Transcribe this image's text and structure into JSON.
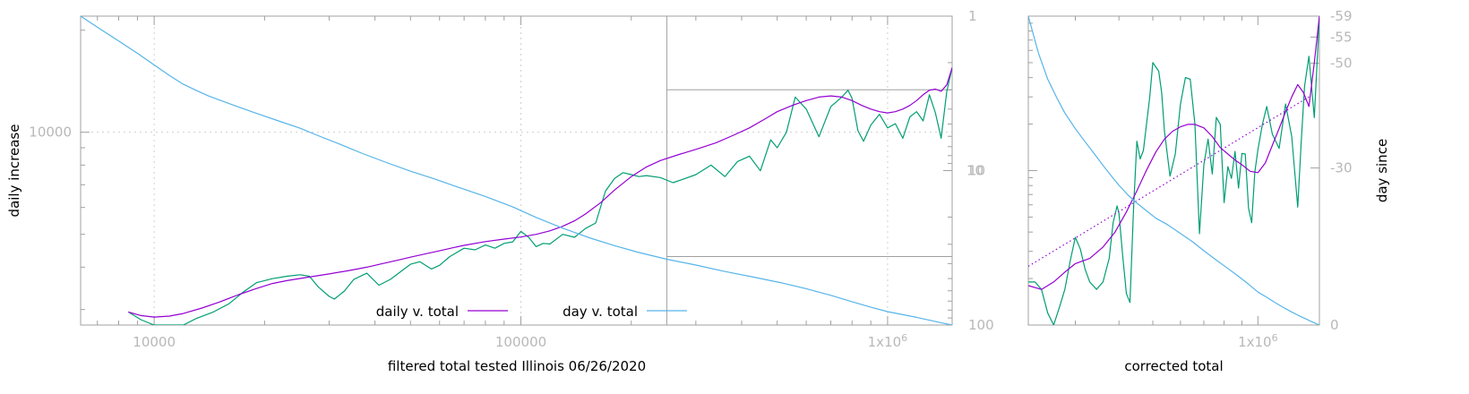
{
  "chart_data": [
    {
      "type": "line",
      "id": "main",
      "xlabel": "filtered total tested Illinois 06/26/2020",
      "ylabel_left": "daily increase",
      "ylabel_right": "",
      "x_scale": "log",
      "xlim": [
        6300,
        1500000
      ],
      "x_ticks": [
        {
          "value": 10000,
          "label": "10000"
        },
        {
          "value": 100000,
          "label": "100000"
        },
        {
          "value": 1000000,
          "label": "1x10",
          "sup": "6"
        }
      ],
      "left_scale": "log",
      "left_lim": [
        2700,
        22000
      ],
      "left_ticks": [
        {
          "value": 10000,
          "label": "10000"
        }
      ],
      "right_scale": "log",
      "right_inverted": true,
      "right_lim": [
        1,
        100
      ],
      "right_ticks": [
        {
          "value": 1,
          "label": "1"
        },
        {
          "value": 10,
          "label": "10"
        },
        {
          "value": 100,
          "label": "100"
        }
      ],
      "grid": true,
      "legend": [
        {
          "label": "daily v. total",
          "color": "#9400d3"
        },
        {
          "label": "day v. total",
          "color": "#56b4e9"
        }
      ],
      "series": [
        {
          "axis": "left",
          "color": "#009e73",
          "x": [
            8500,
            9200,
            10000,
            11000,
            12000,
            13000,
            14500,
            16000,
            17500,
            19000,
            21000,
            23000,
            25000,
            26500,
            28000,
            30000,
            31000,
            33000,
            35000,
            38000,
            41000,
            44000,
            47000,
            50000,
            53000,
            57000,
            60000,
            64000,
            70000,
            75000,
            80000,
            85000,
            90000,
            95000,
            100000,
            105000,
            110000,
            115000,
            120000,
            130000,
            140000,
            150000,
            160000,
            170000,
            180000,
            190000,
            200000,
            210000,
            220000,
            240000,
            260000,
            280000,
            300000,
            330000,
            360000,
            390000,
            420000,
            450000,
            480000,
            500000,
            530000,
            560000,
            600000,
            650000,
            700000,
            750000,
            780000,
            800000,
            830000,
            860000,
            900000,
            950000,
            1000000,
            1050000,
            1100000,
            1150000,
            1200000,
            1250000,
            1300000,
            1350000,
            1400000,
            1450000,
            1500000
          ],
          "values": [
            2950,
            2800,
            2700,
            2700,
            2700,
            2820,
            2950,
            3120,
            3380,
            3600,
            3700,
            3760,
            3800,
            3760,
            3500,
            3280,
            3220,
            3400,
            3680,
            3840,
            3540,
            3680,
            3880,
            4080,
            4150,
            3950,
            4050,
            4300,
            4550,
            4500,
            4650,
            4550,
            4700,
            4750,
            5100,
            4900,
            4600,
            4700,
            4680,
            5000,
            4900,
            5200,
            5400,
            6700,
            7300,
            7600,
            7500,
            7400,
            7450,
            7350,
            7100,
            7300,
            7500,
            8000,
            7400,
            8200,
            8500,
            7700,
            9500,
            9000,
            10000,
            12700,
            11700,
            9700,
            11900,
            12700,
            13300,
            12600,
            10100,
            9400,
            10500,
            11300,
            10300,
            10600,
            9600,
            11100,
            11500,
            10800,
            12900,
            11400,
            9600,
            13200,
            15500
          ]
        },
        {
          "axis": "left",
          "color": "#9400d3",
          "x": [
            8500,
            9200,
            10000,
            11000,
            12000,
            13500,
            15000,
            17000,
            19000,
            21000,
            23000,
            26000,
            30000,
            34000,
            38000,
            42000,
            46000,
            50000,
            55000,
            60000,
            65000,
            70000,
            80000,
            90000,
            100000,
            110000,
            120000,
            130000,
            140000,
            150000,
            165000,
            180000,
            200000,
            220000,
            240000,
            270000,
            300000,
            340000,
            380000,
            420000,
            460000,
            500000,
            550000,
            600000,
            650000,
            700000,
            750000,
            800000,
            850000,
            900000,
            950000,
            1000000,
            1050000,
            1100000,
            1150000,
            1200000,
            1250000,
            1300000,
            1350000,
            1400000,
            1450000,
            1500000
          ],
          "values": [
            2950,
            2880,
            2850,
            2870,
            2920,
            3030,
            3150,
            3320,
            3460,
            3580,
            3650,
            3730,
            3820,
            3910,
            4000,
            4100,
            4190,
            4280,
            4380,
            4470,
            4560,
            4640,
            4760,
            4840,
            4910,
            5000,
            5120,
            5280,
            5480,
            5740,
            6200,
            6750,
            7400,
            7900,
            8250,
            8600,
            8900,
            9300,
            9800,
            10300,
            10900,
            11500,
            12000,
            12400,
            12700,
            12800,
            12700,
            12400,
            12000,
            11700,
            11500,
            11400,
            11500,
            11700,
            12000,
            12400,
            12900,
            13300,
            13400,
            13200,
            13800,
            15500
          ]
        },
        {
          "axis": "right",
          "color": "#56b4e9",
          "x": [
            6300,
            7000,
            8000,
            9000,
            10000,
            11000,
            12000,
            13000,
            14000,
            15000,
            17000,
            19000,
            22000,
            25000,
            28000,
            32000,
            37000,
            43000,
            50000,
            58000,
            68000,
            80000,
            95000,
            110000,
            130000,
            155000,
            180000,
            210000,
            250000,
            300000,
            360000,
            430000,
            510000,
            600000,
            700000,
            800000,
            900000,
            1000000,
            1100000,
            1200000,
            1300000,
            1400000,
            1500000
          ],
          "values": [
            1,
            1.18,
            1.45,
            1.74,
            2.07,
            2.42,
            2.76,
            3.02,
            3.27,
            3.48,
            3.88,
            4.26,
            4.8,
            5.32,
            5.94,
            6.73,
            7.76,
            8.87,
            10.1,
            11.3,
            12.9,
            14.7,
            17.2,
            20.1,
            23.6,
            27.4,
            30.6,
            33.9,
            37.5,
            40.9,
            45,
            48.9,
            53.1,
            58.2,
            64.2,
            70.6,
            76.7,
            81.9,
            85.7,
            89.2,
            93.1,
            96.6,
            100
          ]
        }
      ]
    },
    {
      "type": "line",
      "id": "side",
      "xlabel": "corrected total",
      "ylabel_right": "day since",
      "x_scale": "log",
      "xlim": [
        220000,
        1500000
      ],
      "x_ticks": [
        {
          "value": 1000000,
          "label": "1x10",
          "sup": "6"
        }
      ],
      "left_scale": "log",
      "left_lim": [
        1,
        100
      ],
      "left_ticks": [
        {
          "value": 10,
          "label": "10"
        }
      ],
      "right_lim": [
        0,
        -59
      ],
      "right_ticks": [
        {
          "value": -59,
          "label": "-59"
        },
        {
          "value": -55,
          "label": "-55"
        },
        {
          "value": -50,
          "label": "-50"
        },
        {
          "value": -30,
          "label": "-30"
        },
        {
          "value": 0,
          "label": "0"
        }
      ],
      "grid": false,
      "series": [
        {
          "axis": "left",
          "color": "#009e73",
          "x": [
            220000,
            230000,
            240000,
            250000,
            260000,
            270000,
            280000,
            290000,
            300000,
            310000,
            320000,
            330000,
            345000,
            360000,
            375000,
            385000,
            395000,
            400000,
            410000,
            420000,
            430000,
            440000,
            450000,
            460000,
            470000,
            490000,
            500000,
            520000,
            530000,
            540000,
            560000,
            580000,
            600000,
            620000,
            640000,
            660000,
            680000,
            700000,
            720000,
            740000,
            760000,
            780000,
            800000,
            820000,
            840000,
            860000,
            880000,
            900000,
            920000,
            940000,
            960000,
            980000,
            1000000,
            1030000,
            1060000,
            1100000,
            1150000,
            1200000,
            1250000,
            1300000,
            1330000,
            1360000,
            1400000,
            1450000,
            1500000
          ],
          "values": [
            1.9,
            1.9,
            1.7,
            1.2,
            1.0,
            1.3,
            1.7,
            2.6,
            3.7,
            3.1,
            2.3,
            1.9,
            1.7,
            1.9,
            2.7,
            4.6,
            5.9,
            5.3,
            2.8,
            1.6,
            1.4,
            5.5,
            15.5,
            11.9,
            13.5,
            30,
            50,
            44,
            32,
            18,
            9.2,
            12.8,
            27,
            40,
            39,
            20,
            3.9,
            10.9,
            16,
            9.5,
            22.1,
            19.9,
            6.2,
            10.6,
            8.9,
            13.3,
            7.7,
            12.9,
            12.8,
            5.7,
            4.6,
            9.8,
            13.7,
            20,
            26,
            17.2,
            13.9,
            27,
            16.6,
            5.8,
            15,
            35,
            55,
            22,
            100
          ]
        },
        {
          "axis": "left",
          "color": "#9400d3",
          "x": [
            220000,
            240000,
            260000,
            280000,
            300000,
            330000,
            360000,
            390000,
            420000,
            450000,
            480000,
            510000,
            540000,
            570000,
            600000,
            630000,
            660000,
            700000,
            740000,
            780000,
            820000,
            860000,
            900000,
            950000,
            1000000,
            1050000,
            1100000,
            1150000,
            1200000,
            1250000,
            1300000,
            1350000,
            1400000,
            1450000,
            1500000
          ],
          "values": [
            1.8,
            1.7,
            1.9,
            2.2,
            2.5,
            2.7,
            3.2,
            4.0,
            5.4,
            7.4,
            10.1,
            13.2,
            16.0,
            18.0,
            19.2,
            19.9,
            19.9,
            18.9,
            16.6,
            14.1,
            12.8,
            11.7,
            10.9,
            9.9,
            9.7,
            11.2,
            14.6,
            18.7,
            24,
            30,
            36,
            32,
            26,
            50,
            100
          ]
        },
        {
          "axis": "left",
          "color": "#9400d3",
          "dotted": true,
          "x": [
            220000,
            1400000
          ],
          "values": [
            2.4,
            30
          ]
        },
        {
          "axis": "right",
          "color": "#56b4e9",
          "x": [
            220000,
            235000,
            250000,
            265000,
            280000,
            300000,
            320000,
            340000,
            360000,
            380000,
            400000,
            425000,
            450000,
            480000,
            510000,
            550000,
            600000,
            650000,
            700000,
            760000,
            820000,
            880000,
            940000,
            1000000,
            1060000,
            1120000,
            1180000,
            1240000,
            1300000,
            1360000,
            1420000,
            1500000
          ],
          "values": [
            -59,
            -52,
            -47,
            -43.5,
            -40.5,
            -37.5,
            -35,
            -32.7,
            -30.5,
            -28.5,
            -26.7,
            -24.8,
            -23.3,
            -21.8,
            -20.4,
            -19.2,
            -17.5,
            -15.9,
            -14.2,
            -12.4,
            -10.8,
            -9.3,
            -7.8,
            -6.3,
            -5.3,
            -4.3,
            -3.4,
            -2.6,
            -1.9,
            -1.3,
            -0.7,
            0
          ]
        }
      ]
    }
  ]
}
